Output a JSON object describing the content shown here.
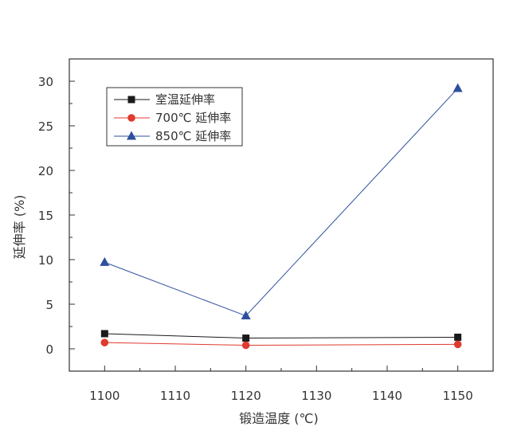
{
  "chart_data": {
    "type": "line",
    "title": "",
    "xlabel": "锻造温度 (℃)",
    "ylabel": "延伸率 (%)",
    "x": [
      1100,
      1120,
      1150
    ],
    "xlim": [
      1095,
      1155
    ],
    "ylim": [
      -2.5,
      32.5
    ],
    "xticks": [
      1100,
      1110,
      1120,
      1130,
      1140,
      1150
    ],
    "yticks": [
      0,
      5,
      10,
      15,
      20,
      25,
      30
    ],
    "grid": false,
    "legend_position": "top-left",
    "series": [
      {
        "name": "室温延伸率",
        "values": [
          1.7,
          1.2,
          1.3
        ],
        "color": "#1a1a1a",
        "marker": "square"
      },
      {
        "name": "700℃ 延伸率",
        "values": [
          0.7,
          0.4,
          0.5
        ],
        "color": "#e03a2f",
        "marker": "circle"
      },
      {
        "name": "850℃ 延伸率",
        "values": [
          9.7,
          3.7,
          29.2
        ],
        "color": "#2e4f9e",
        "marker": "triangle"
      }
    ]
  }
}
